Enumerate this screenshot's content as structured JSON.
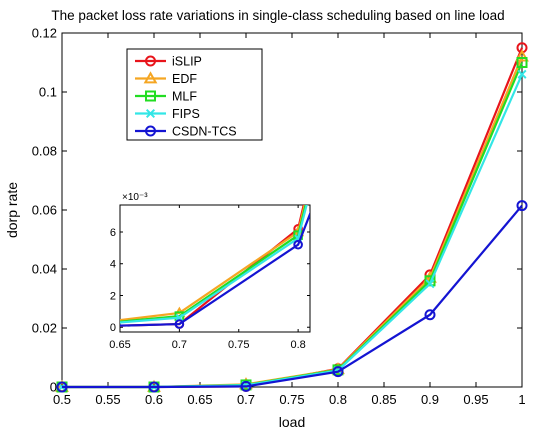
{
  "chart_data": {
    "type": "line",
    "title": "The packet loss rate variations in single-class scheduling based on line load",
    "xlabel": "load",
    "ylabel": "dorp rate",
    "x": [
      0.5,
      0.6,
      0.7,
      0.8,
      0.9,
      1.0
    ],
    "xlim": [
      0.5,
      1.0
    ],
    "ylim": [
      0,
      0.12
    ],
    "xticks": [
      0.5,
      0.55,
      0.6,
      0.65,
      0.7,
      0.75,
      0.8,
      0.85,
      0.9,
      0.95,
      1
    ],
    "xtick_labels": [
      "0.5",
      "0.55",
      "0.6",
      "0.65",
      "0.7",
      "0.75",
      "0.8",
      "0.85",
      "0.9",
      "0.95",
      "1"
    ],
    "yticks": [
      0,
      0.02,
      0.04,
      0.06,
      0.08,
      0.1,
      0.12
    ],
    "ytick_labels": [
      "0",
      "0.02",
      "0.04",
      "0.06",
      "0.08",
      "0.1",
      "0.12"
    ],
    "grid": false,
    "legend_position": "top-left",
    "series": [
      {
        "name": "iSLIP",
        "color": "#e8141b",
        "marker": "circle",
        "values": [
          0,
          0,
          0.0002,
          0.0062,
          0.038,
          0.115
        ]
      },
      {
        "name": "EDF",
        "color": "#f5a623",
        "marker": "triangle",
        "values": [
          0,
          0,
          0.0009,
          0.006,
          0.037,
          0.112
        ]
      },
      {
        "name": "MLF",
        "color": "#22dd22",
        "marker": "square",
        "values": [
          0,
          0,
          0.0007,
          0.0058,
          0.036,
          0.11
        ]
      },
      {
        "name": "FIPS",
        "color": "#33e6e6",
        "marker": "x",
        "values": [
          0,
          0,
          0.0006,
          0.0056,
          0.035,
          0.106
        ]
      },
      {
        "name": "CSDN-TCS",
        "color": "#1414d2",
        "marker": "circle",
        "values": [
          0,
          0,
          0.0002,
          0.0052,
          0.0245,
          0.0615
        ]
      }
    ],
    "inset": {
      "xlim": [
        0.65,
        0.81
      ],
      "ylim": [
        -0.0003,
        0.0077
      ],
      "xticks": [
        0.65,
        0.7,
        0.75,
        0.8
      ],
      "xtick_labels": [
        "0.65",
        "0.7",
        "0.75",
        "0.8"
      ],
      "yticks": [
        0,
        2,
        4,
        6
      ],
      "ytick_labels": [
        "0",
        "2",
        "4",
        "6"
      ],
      "exponent_label": "×10⁻³"
    }
  }
}
